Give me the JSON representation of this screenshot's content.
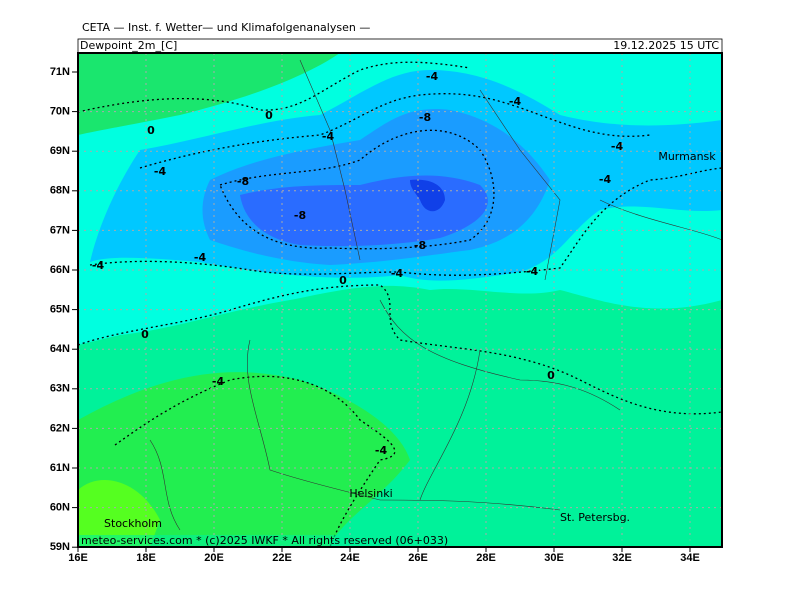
{
  "header": {
    "institute": "CETA — Inst. f. Wetter— und Klimafolgenanalysen —",
    "field": "Dewpoint_2m_[C]",
    "valid_time": "19.12.2025 15 UTC"
  },
  "lat_labels": [
    "71N",
    "70N",
    "69N",
    "68N",
    "67N",
    "66N",
    "65N",
    "64N",
    "63N",
    "62N",
    "61N",
    "60N",
    "59N"
  ],
  "lon_labels": [
    "16E",
    "18E",
    "20E",
    "22E",
    "24E",
    "26E",
    "28E",
    "30E",
    "32E",
    "34E"
  ],
  "contour_labels": [
    "-4",
    "-4",
    "-8",
    "0",
    "0",
    "-4",
    "-4",
    "-4",
    "-4",
    "-8",
    "-8",
    "-8",
    "-4",
    "-4",
    "0",
    "-4",
    "-4",
    "0",
    "-4",
    "0",
    "-4"
  ],
  "cities": [
    "Murmansk",
    "Helsinki",
    "Stockholm",
    "St. Petersbg."
  ],
  "footer": "meteo-services.com * (c)2025 IWKF * All rights reserved (06+033)"
}
